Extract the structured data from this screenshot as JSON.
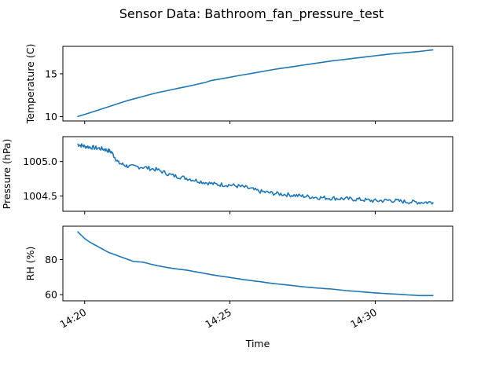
{
  "figure": {
    "title": "Sensor Data: Bathroom_fan_pressure_test",
    "xlabel": "Time",
    "line_color": "#1f77b4"
  },
  "chart_data": [
    {
      "type": "line",
      "ylabel": "Temperature (C)",
      "xlim": [
        "14:19:15",
        "14:32:40"
      ],
      "ylim": [
        9.5,
        18.2
      ],
      "yticks": [
        10,
        15
      ],
      "ytick_labels": [
        "10",
        "15"
      ],
      "series": [
        {
          "x": [
            "14:19:45",
            "14:20:30",
            "14:21:30",
            "14:22:30",
            "14:23:30",
            "14:24:10",
            "14:24:20",
            "14:25:30",
            "14:26:30",
            "14:27:30",
            "14:28:30",
            "14:29:30",
            "14:30:30",
            "14:31:30",
            "14:32:00"
          ],
          "y": [
            10.0,
            10.8,
            11.9,
            12.8,
            13.5,
            14.0,
            14.2,
            14.9,
            15.5,
            16.0,
            16.5,
            16.9,
            17.3,
            17.6,
            17.8
          ]
        }
      ]
    },
    {
      "type": "line",
      "ylabel": "Pressure (hPa)",
      "xlim": [
        "14:19:15",
        "14:32:40"
      ],
      "ylim": [
        1004.28,
        1005.36
      ],
      "yticks": [
        1004.5,
        1005.0
      ],
      "ytick_labels": [
        "1004.5",
        "1005.0"
      ],
      "series": [
        {
          "x": [
            "14:19:45",
            "14:20:00",
            "14:20:20",
            "14:20:40",
            "14:20:55",
            "14:21:10",
            "14:21:30",
            "14:22:00",
            "14:22:30",
            "14:23:00",
            "14:23:30",
            "14:24:00",
            "14:24:30",
            "14:25:00",
            "14:25:30",
            "14:26:00",
            "14:26:30",
            "14:27:00",
            "14:27:30",
            "14:28:00",
            "14:28:30",
            "14:29:00",
            "14:29:30",
            "14:30:00",
            "14:30:30",
            "14:31:00",
            "14:31:30",
            "14:32:00"
          ],
          "y": [
            1005.25,
            1005.22,
            1005.2,
            1005.18,
            1005.14,
            1004.98,
            1004.93,
            1004.92,
            1004.88,
            1004.8,
            1004.76,
            1004.71,
            1004.67,
            1004.66,
            1004.63,
            1004.57,
            1004.54,
            1004.52,
            1004.5,
            1004.48,
            1004.47,
            1004.46,
            1004.45,
            1004.43,
            1004.44,
            1004.42,
            1004.41,
            1004.41
          ]
        }
      ]
    },
    {
      "type": "line",
      "ylabel": "RH (%)",
      "xlim": [
        "14:19:15",
        "14:32:40"
      ],
      "ylim": [
        56.5,
        99
      ],
      "yticks": [
        60,
        80
      ],
      "ytick_labels": [
        "60",
        "80"
      ],
      "xticks": [
        "14:20:00",
        "14:25:00",
        "14:30:00"
      ],
      "xtick_labels": [
        "14:20",
        "14:25",
        "14:30"
      ],
      "series": [
        {
          "x": [
            "14:19:45",
            "14:20:00",
            "14:20:10",
            "14:20:30",
            "14:20:50",
            "14:21:15",
            "14:21:40",
            "14:22:00",
            "14:22:30",
            "14:23:00",
            "14:23:30",
            "14:24:00",
            "14:24:30",
            "14:25:00",
            "14:25:30",
            "14:26:00",
            "14:26:30",
            "14:27:00",
            "14:27:30",
            "14:28:00",
            "14:28:30",
            "14:29:00",
            "14:29:30",
            "14:30:00",
            "14:30:30",
            "14:31:00",
            "14:31:30",
            "14:32:00"
          ],
          "y": [
            96,
            92,
            90,
            87,
            84,
            81.5,
            79,
            78.5,
            76.5,
            75,
            74,
            72.5,
            71,
            69.8,
            68.5,
            67.5,
            66.3,
            65.5,
            64.5,
            63.8,
            63.2,
            62.3,
            61.7,
            61.0,
            60.5,
            60.0,
            59.5,
            59.5
          ]
        }
      ]
    }
  ]
}
